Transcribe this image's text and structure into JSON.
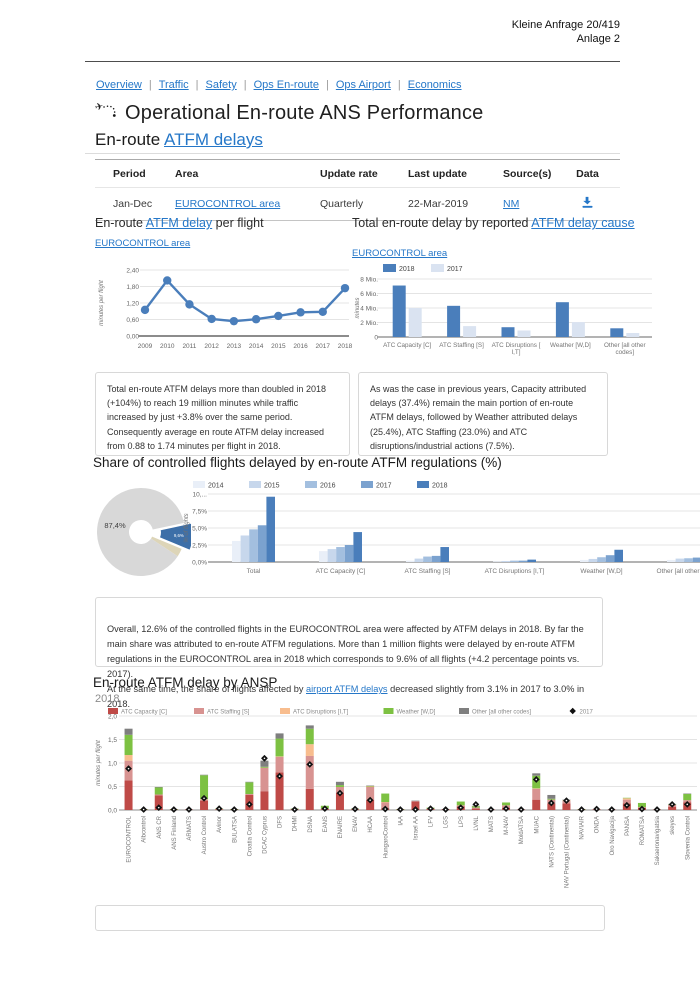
{
  "doc": {
    "ref_line1": "Kleine Anfrage 20/419",
    "ref_line2": "Anlage 2"
  },
  "nav": {
    "separator": "|",
    "items": [
      "Overview",
      "Traffic",
      "Safety",
      "Ops En-route",
      "Ops Airport",
      "Economics"
    ]
  },
  "header": {
    "title": "Operational En-route ANS Performance",
    "subtitle_prefix": "En-route ",
    "subtitle_link": "ATFM delays"
  },
  "info_table": {
    "headers": [
      "Period",
      "Area",
      "Update rate",
      "Last update",
      "Source(s)",
      "Data"
    ],
    "row": {
      "period": "Jan-Dec",
      "area_link": "EUROCONTROL area",
      "update_rate": "Quarterly",
      "last_update": "22-Mar-2019",
      "source_link": "NM",
      "data_icon": "download-icon"
    }
  },
  "delay_per_flight": {
    "title_pre": "En-route ",
    "title_link": "ATFM delay",
    "title_post": " per flight",
    "area_link": "EUROCONTROL area"
  },
  "delay_by_cause": {
    "title_pre": "Total en-route delay by reported ",
    "title_link": "ATFM delay cause",
    "area_link": "EUROCONTROL area"
  },
  "insights": {
    "left": "Total en-route ATFM delays more than doubled in 2018 (+104%) to reach 19 million minutes while traffic increased by just +3.8% over the same period.\nConsequently average en route ATFM delay increased from 0.88 to 1.74 minutes per flight in 2018.",
    "right": "As was the case in previous years, Capacity attributed delays (37.4%) remain the main portion of en-route ATFM delays, followed by Weather attributed delays (25.4%), ATC Staffing (23.0%) and ATC disruptions/industrial actions (7.5%)."
  },
  "share_section": {
    "title": "Share of controlled flights delayed by en-route ATFM regulations (%)"
  },
  "overall": {
    "part1": "Overall, 12.6% of the controlled flights in the EUROCONTROL area were affected by ATFM delays in 2018. By far the main share was attributed to en-route ATFM regulations. More than 1 million flights were delayed by en-route ATFM regulations in the EUROCONTROL area in 2018 which corresponds to 9.6% of all flights (+4.2 percentage points vs. 2017).\nAt the same time, the share of flights affected by ",
    "link": "airport ATFM delays",
    "part2": " decreased slightly from 3.1% in 2017 to 3.0% in 2018."
  },
  "ansp_section": {
    "title": "En-route ATFM delay by ANSP",
    "year_label": "2018"
  },
  "chart_data": {
    "delay_per_flight": {
      "type": "line",
      "ylabel": "minutes per flight",
      "x": [
        "2009",
        "2010",
        "2011",
        "2012",
        "2013",
        "2014",
        "2015",
        "2016",
        "2017",
        "2018"
      ],
      "values": [
        0.95,
        2.02,
        1.15,
        0.62,
        0.54,
        0.61,
        0.73,
        0.86,
        0.88,
        1.74
      ],
      "ymax": 2.4,
      "yticks": [
        0,
        0.6,
        1.2,
        1.8,
        2.4
      ],
      "ytick_labels": [
        "0,00",
        "0,60",
        "1,20",
        "1,80",
        "2,40"
      ],
      "line_color": "#4a7ebb"
    },
    "delay_by_cause": {
      "type": "bar",
      "ylabel": "minutes",
      "categories": [
        "ATC Capacity [C]",
        "ATC Staffing [S]",
        "ATC Disruptions [\nI,T]",
        "Weather [W,D]",
        "Other [all other\ncodes]"
      ],
      "series": [
        {
          "name": "2018",
          "color": "#4a7ebb",
          "values": [
            7.1,
            4.3,
            1.35,
            4.8,
            1.2
          ]
        },
        {
          "name": "2017",
          "color": "#dae3f1",
          "values": [
            4.0,
            1.5,
            0.9,
            2.05,
            0.55
          ]
        }
      ],
      "ymax": 8,
      "yticks": [
        0,
        2,
        4,
        6,
        8
      ],
      "ytick_labels": [
        "0",
        "2 Mio.",
        "4 Mio.",
        "6 Mio.",
        "8 Mio."
      ]
    },
    "share_pie": {
      "type": "pie",
      "slices": [
        {
          "name": "en-route ATFM delayed",
          "value": 9.6,
          "label": "9,6%",
          "color": "#3d6fa8",
          "exploded": true
        },
        {
          "name": "airport ATFM delayed",
          "value": 3.0,
          "label": "",
          "color": "#ddd5b8",
          "exploded": false
        },
        {
          "name": "not delayed",
          "value": 87.4,
          "label": "87,4%",
          "color": "#d8d8d8",
          "exploded": false
        }
      ]
    },
    "share_bars": {
      "type": "bar",
      "ylabel": "% of flights",
      "categories": [
        "Total",
        "ATC Capacity [C]",
        "ATC Staffing [S]",
        "ATC Disruptions [I,T]",
        "Weather [W,D]",
        "Other [all other codes]"
      ],
      "series": [
        {
          "name": "2014",
          "color": "#e9eff8",
          "values": [
            3.1,
            1.6,
            0.2,
            0.1,
            0.3,
            0.3
          ]
        },
        {
          "name": "2015",
          "color": "#c7d7ec",
          "values": [
            3.9,
            1.9,
            0.5,
            0.15,
            0.45,
            0.5
          ]
        },
        {
          "name": "2016",
          "color": "#a3bfdf",
          "values": [
            4.8,
            2.2,
            0.8,
            0.2,
            0.7,
            0.55
          ]
        },
        {
          "name": "2017",
          "color": "#7ba2cf",
          "values": [
            5.4,
            2.5,
            0.9,
            0.2,
            1.0,
            0.65
          ]
        },
        {
          "name": "2018",
          "color": "#4a7ebb",
          "values": [
            9.6,
            4.4,
            2.2,
            0.35,
            1.8,
            0.7
          ]
        }
      ],
      "ymax": 10,
      "yticks": [
        0,
        2.5,
        5,
        7.5,
        10
      ],
      "ytick_labels": [
        "0,0%",
        "2,5%",
        "5,0%",
        "7,5%",
        "10,..."
      ]
    },
    "ansp": {
      "type": "stacked-bar",
      "ylabel": "minutes per flight",
      "ymax": 2.0,
      "yticks": [
        0,
        0.5,
        1.0,
        1.5,
        2.0
      ],
      "ytick_labels": [
        "0,0",
        "0,5",
        "1,0",
        "1,5",
        "2,0"
      ],
      "segment_names": [
        "ATC Capacity [C]",
        "ATC Staffing [S]",
        "ATC Disruptions [I,T]",
        "Weather [W,D]",
        "Other [all other codes]"
      ],
      "segment_colors": [
        "#bf4a47",
        "#d89391",
        "#f8bd8e",
        "#7dc142",
        "#7f7f7f"
      ],
      "marker_name": "2017",
      "marker_color": "#111111",
      "categories": [
        "EUROCONTROL",
        "Albcontrol",
        "ANS CR",
        "ANS Finland",
        "ARMATS",
        "Austro Control",
        "Avinor",
        "BULATSA",
        "Croatia Control",
        "DCAC Cyprus",
        "DFS",
        "DHMI",
        "DSNA",
        "EANS",
        "ENAIRE",
        "ENAV",
        "HCAA",
        "HungaroControl",
        "IAA",
        "Israel AA",
        "LFV",
        "LGS",
        "LPS",
        "LVNL",
        "MATS",
        "M-NAV",
        "MoldATSA",
        "MUAC",
        "NATS (Continental)",
        "NAV Portugal (Continental)",
        "NAVIAIR",
        "ONDA",
        "Oro Navigacija",
        "PANSA",
        "ROMATSA",
        "Sakaeronavigatsia",
        "skeyes",
        "Slovenia Control"
      ],
      "segments": [
        [
          0.63,
          0.42,
          0.12,
          0.43,
          0.13
        ],
        [
          0.01,
          0,
          0,
          0.01,
          0
        ],
        [
          0.31,
          0.02,
          0,
          0.15,
          0.01
        ],
        [
          0.01,
          0,
          0,
          0.01,
          0
        ],
        [
          0.01,
          0,
          0,
          0,
          0
        ],
        [
          0.2,
          0.02,
          0.01,
          0.51,
          0.01
        ],
        [
          0.01,
          0.01,
          0,
          0.01,
          0
        ],
        [
          0.01,
          0,
          0,
          0.01,
          0
        ],
        [
          0.32,
          0.02,
          0,
          0.25,
          0.01
        ],
        [
          0.4,
          0.5,
          0,
          0.02,
          0.13
        ],
        [
          0.8,
          0.33,
          0.01,
          0.38,
          0.11
        ],
        [
          0.01,
          0.01,
          0,
          0.01,
          0
        ],
        [
          0.45,
          0.7,
          0.25,
          0.33,
          0.07
        ],
        [
          0.02,
          0.01,
          0,
          0.06,
          0
        ],
        [
          0.37,
          0.12,
          0,
          0.04,
          0.07
        ],
        [
          0.01,
          0.01,
          0,
          0.01,
          0
        ],
        [
          0.22,
          0.27,
          0.01,
          0.01,
          0.01
        ],
        [
          0.04,
          0.12,
          0.01,
          0.18,
          0
        ],
        [
          0.01,
          0,
          0,
          0.01,
          0
        ],
        [
          0.18,
          0.01,
          0,
          0,
          0.01
        ],
        [
          0.02,
          0.01,
          0,
          0.02,
          0
        ],
        [
          0.01,
          0.01,
          0,
          0,
          0
        ],
        [
          0.08,
          0.02,
          0,
          0.08,
          0
        ],
        [
          0.03,
          0.02,
          0,
          0.03,
          0.01
        ],
        [
          0.01,
          0,
          0,
          0,
          0
        ],
        [
          0.05,
          0.05,
          0,
          0.06,
          0
        ],
        [
          0.01,
          0,
          0,
          0,
          0
        ],
        [
          0.22,
          0.23,
          0.01,
          0.27,
          0.05
        ],
        [
          0.14,
          0.08,
          0,
          0.02,
          0.08
        ],
        [
          0.14,
          0.05,
          0.02,
          0,
          0.01
        ],
        [
          0.01,
          0,
          0,
          0.01,
          0
        ],
        [
          0.01,
          0.01,
          0,
          0,
          0
        ],
        [
          0.01,
          0,
          0,
          0,
          0
        ],
        [
          0.14,
          0.08,
          0.03,
          0.01,
          0
        ],
        [
          0.05,
          0.01,
          0,
          0.09,
          0
        ],
        [
          0.01,
          0,
          0,
          0,
          0
        ],
        [
          0.07,
          0.04,
          0,
          0.01,
          0.01
        ],
        [
          0.16,
          0.05,
          0,
          0.13,
          0.01
        ]
      ],
      "marker_2017": [
        0.88,
        0.01,
        0.05,
        0.01,
        0.01,
        0.25,
        0.03,
        0.01,
        0.12,
        1.1,
        0.72,
        0.01,
        0.97,
        0.03,
        0.36,
        0.02,
        0.21,
        0.02,
        0.01,
        0.01,
        0.03,
        0.01,
        0.05,
        0.12,
        0.01,
        0.03,
        0.01,
        0.65,
        0.15,
        0.2,
        0.01,
        0.02,
        0.01,
        0.1,
        0.02,
        0.01,
        0.12,
        0.12
      ]
    }
  }
}
